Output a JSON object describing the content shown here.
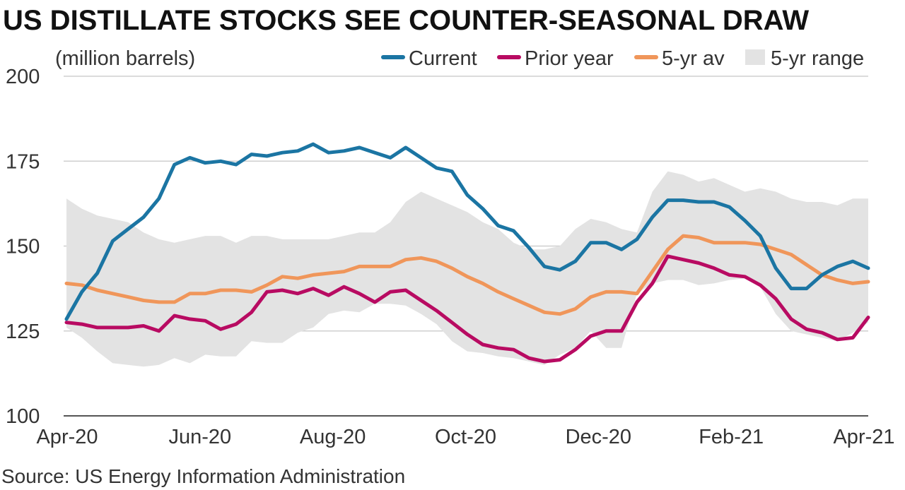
{
  "chart_data": {
    "type": "line",
    "title": "US DISTILLATE STOCKS SEE COUNTER-SEASONAL DRAW",
    "ylabel": "(million barrels)",
    "source": "Source: US Energy Information Administration",
    "ylim": [
      100,
      200
    ],
    "yticks": [
      "100",
      "125",
      "150",
      "175",
      "200"
    ],
    "xticks": [
      "Apr-20",
      "Jun-20",
      "Aug-20",
      "Oct-20",
      "Dec-20",
      "Feb-21",
      "Apr-21"
    ],
    "grid": true,
    "legend_position": "top-right",
    "series": [
      {
        "name": "Current",
        "color": "#1b75a3",
        "values": [
          128.5,
          136.5,
          142,
          151.5,
          155,
          158.5,
          164,
          174,
          176,
          174.5,
          175,
          174,
          177,
          176.5,
          177.5,
          178,
          180,
          177.5,
          178,
          179,
          177.5,
          176,
          179,
          176,
          173,
          172,
          165,
          161,
          156,
          154.5,
          149.5,
          144,
          143,
          145.5,
          151,
          151,
          149,
          152,
          158.5,
          163.5,
          163.5,
          163,
          163,
          161.5,
          157.5,
          153,
          143.5,
          137.5,
          137.5,
          141.5,
          144,
          145.5,
          143.5
        ]
      },
      {
        "name": "Prior year",
        "color": "#b80b62",
        "values": [
          127.5,
          127,
          126,
          126,
          126,
          126.5,
          125,
          129.5,
          128.5,
          128,
          125.5,
          127,
          130.5,
          136.5,
          137,
          136,
          137.5,
          135.5,
          138,
          136,
          133.5,
          136.5,
          137,
          134,
          131,
          127.5,
          124,
          121,
          120,
          119.5,
          117,
          116,
          116.5,
          119.5,
          123.5,
          125,
          125,
          133.5,
          139,
          147,
          146,
          145,
          143.5,
          141.5,
          141,
          138.5,
          134.5,
          128.5,
          125.5,
          124.5,
          122.5,
          123,
          129
        ]
      },
      {
        "name": "5-yr av",
        "color": "#f0965a",
        "values": [
          139,
          138.5,
          137,
          136,
          135,
          134,
          133.5,
          133.5,
          136,
          136,
          137,
          137,
          136.5,
          138.5,
          141,
          140.5,
          141.5,
          142,
          142.5,
          144,
          144,
          144,
          146,
          146.5,
          145.5,
          143.5,
          141,
          139,
          136.5,
          134.5,
          132.5,
          130.5,
          130,
          131.5,
          135,
          136.5,
          136.5,
          136,
          142.5,
          149,
          153,
          152.5,
          151,
          151,
          151,
          150.5,
          149,
          147.5,
          144.5,
          141.5,
          140,
          139,
          139.5
        ]
      },
      {
        "name": "5-yr range",
        "color": "#e3e3e3",
        "upper": [
          164,
          161,
          159,
          158,
          157,
          154,
          152,
          151,
          152,
          153,
          153,
          151,
          153,
          153,
          152,
          152,
          152,
          152,
          153,
          154,
          154,
          157,
          163,
          166,
          164,
          162,
          160,
          157,
          155,
          151,
          149,
          149,
          150,
          155,
          158,
          157,
          155,
          154,
          166,
          172,
          171,
          169,
          170,
          168,
          166,
          167,
          166,
          164,
          163,
          163,
          162,
          164,
          164
        ],
        "lower": [
          126,
          123,
          119,
          115.5,
          115,
          114.5,
          115,
          117,
          115.5,
          118,
          117.5,
          117.5,
          122,
          121.5,
          121.5,
          124.5,
          126,
          130,
          131,
          130.5,
          133,
          133,
          132.5,
          130,
          127,
          122,
          119,
          118.5,
          117.5,
          117,
          116,
          115,
          118,
          120,
          125,
          120,
          120,
          136,
          139,
          140,
          140,
          138.5,
          139,
          140,
          140.5,
          138,
          130,
          125,
          124,
          123,
          122,
          124.5,
          127.5
        ]
      }
    ]
  }
}
